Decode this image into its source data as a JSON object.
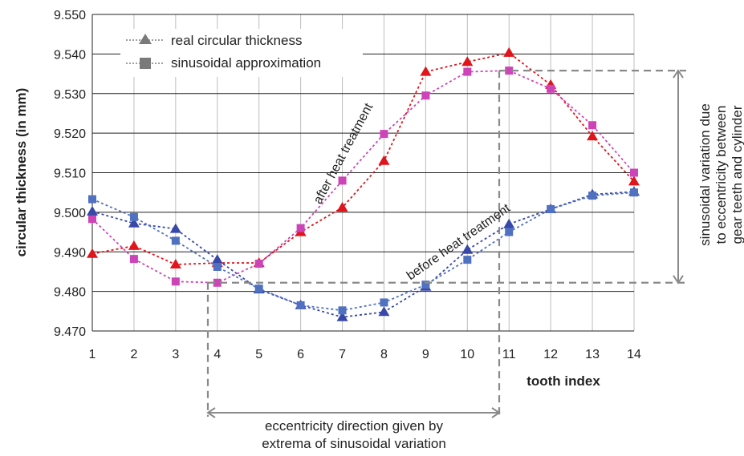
{
  "chart_data": {
    "type": "line",
    "x": [
      1,
      2,
      3,
      4,
      5,
      6,
      7,
      8,
      9,
      10,
      11,
      12,
      13,
      14
    ],
    "xlabel": "tooth index",
    "ylabel": "circular thickness (in mm)",
    "ylim": [
      9.47,
      9.55
    ],
    "yticks": [
      "9.470",
      "9.480",
      "9.490",
      "9.500",
      "9.510",
      "9.520",
      "9.530",
      "9.540",
      "9.550"
    ],
    "xticks": [
      "1",
      "2",
      "3",
      "4",
      "5",
      "6",
      "7",
      "8",
      "9",
      "10",
      "11",
      "12",
      "13",
      "14"
    ],
    "grid": true,
    "legend_position": "top-left",
    "legend": [
      {
        "label": "real circular thickness",
        "marker": "triangle"
      },
      {
        "label": "sinusoidal approximation",
        "marker": "square"
      }
    ],
    "series": [
      {
        "group": "after heat treatment",
        "marker": "triangle",
        "color": "#e0141b",
        "values": [
          9.4895,
          9.4915,
          9.4868,
          9.4872,
          9.4872,
          9.495,
          9.5012,
          9.513,
          9.5355,
          9.538,
          9.5403,
          9.5322,
          9.5192,
          9.5078
        ]
      },
      {
        "group": "after heat treatment",
        "marker": "square",
        "color": "#cc44b8",
        "values": [
          9.4983,
          9.4882,
          9.4825,
          9.4822,
          9.487,
          9.496,
          9.508,
          9.5198,
          9.5295,
          9.5355,
          9.5358,
          9.5312,
          9.522,
          9.51
        ]
      },
      {
        "group": "before heat treatment",
        "marker": "triangle",
        "color": "#3848a8",
        "values": [
          9.5002,
          9.4972,
          9.4958,
          9.488,
          9.4805,
          9.4765,
          9.4735,
          9.4748,
          9.4812,
          9.4905,
          9.497,
          9.5008,
          9.5045,
          9.5052
        ]
      },
      {
        "group": "before heat treatment",
        "marker": "square",
        "color": "#5070c0",
        "values": [
          9.5033,
          9.4988,
          9.4928,
          9.4862,
          9.4807,
          9.4765,
          9.4752,
          9.4772,
          9.4817,
          9.488,
          9.495,
          9.5008,
          9.5042,
          9.505
        ]
      }
    ],
    "annotations": {
      "after": "after heat treatment",
      "before": "before heat treatment",
      "sinusoidal_line1": "sinusoidal variation due",
      "sinusoidal_line2": "to eccentricity between",
      "sinusoidal_line3": "gear teeth and cylinder",
      "eccentricity_line1": "eccentricity direction given by",
      "eccentricity_line2": "extrema of sinusoidal variation"
    }
  }
}
